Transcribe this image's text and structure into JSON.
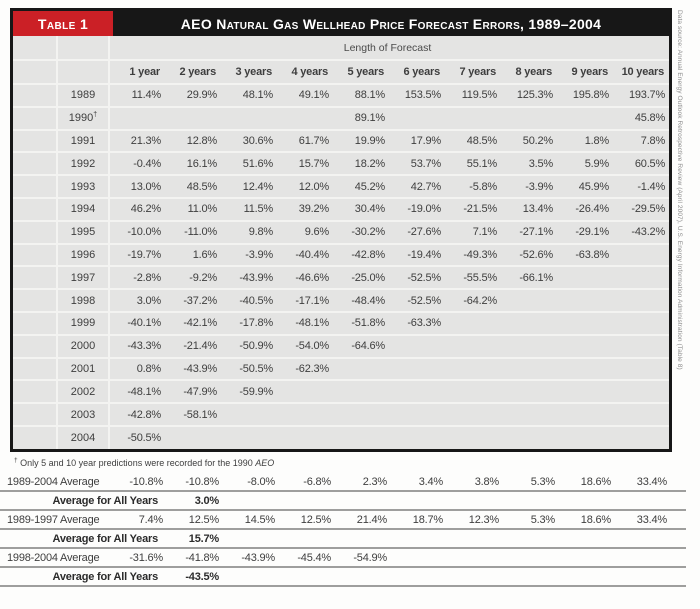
{
  "header": {
    "table_label": "Table 1",
    "title": "AEO Natural Gas Wellhead Price Forecast Errors, 1989–2004",
    "span_label": "Length of Forecast"
  },
  "source_note": "Data source: Annual Energy Outlook Retrospective Review (April 2007), U.S. Energy Information Administration (Table 8)",
  "footnote": {
    "marker": "†",
    "text": " Only 5 and 10 year predictions were recorded for the 1990 ",
    "italic": "AEO"
  },
  "colors": {
    "accent_red": "#cb2026",
    "bar_black": "#171717",
    "table_bg": "#e4e4e3",
    "grid_line": "#f3f3f1",
    "rule_gray": "#9e9e9d"
  },
  "chart_data": {
    "type": "table",
    "title": "AEO Natural Gas Wellhead Price Forecast Errors, 1989–2004",
    "column_group_label": "Length of Forecast",
    "columns": [
      "1 year",
      "2 years",
      "3 years",
      "4 years",
      "5 years",
      "6 years",
      "7 years",
      "8 years",
      "9 years",
      "10 years"
    ],
    "rows": [
      {
        "year": "1989",
        "note": "",
        "values": [
          "11.4%",
          "29.9%",
          "48.1%",
          "49.1%",
          "88.1%",
          "153.5%",
          "119.5%",
          "125.3%",
          "195.8%",
          "193.7%"
        ]
      },
      {
        "year": "1990",
        "note": "†",
        "values": [
          "",
          "",
          "",
          "",
          "89.1%",
          "",
          "",
          "",
          "",
          "45.8%"
        ]
      },
      {
        "year": "1991",
        "note": "",
        "values": [
          "21.3%",
          "12.8%",
          "30.6%",
          "61.7%",
          "19.9%",
          "17.9%",
          "48.5%",
          "50.2%",
          "1.8%",
          "7.8%"
        ]
      },
      {
        "year": "1992",
        "note": "",
        "values": [
          "-0.4%",
          "16.1%",
          "51.6%",
          "15.7%",
          "18.2%",
          "53.7%",
          "55.1%",
          "3.5%",
          "5.9%",
          "60.5%"
        ]
      },
      {
        "year": "1993",
        "note": "",
        "values": [
          "13.0%",
          "48.5%",
          "12.4%",
          "12.0%",
          "45.2%",
          "42.7%",
          "-5.8%",
          "-3.9%",
          "45.9%",
          "-1.4%"
        ]
      },
      {
        "year": "1994",
        "note": "",
        "values": [
          "46.2%",
          "11.0%",
          "11.5%",
          "39.2%",
          "30.4%",
          "-19.0%",
          "-21.5%",
          "13.4%",
          "-26.4%",
          "-29.5%"
        ]
      },
      {
        "year": "1995",
        "note": "",
        "values": [
          "-10.0%",
          "-11.0%",
          "9.8%",
          "9.6%",
          "-30.2%",
          "-27.6%",
          "7.1%",
          "-27.1%",
          "-29.1%",
          "-43.2%"
        ]
      },
      {
        "year": "1996",
        "note": "",
        "values": [
          "-19.7%",
          "1.6%",
          "-3.9%",
          "-40.4%",
          "-42.8%",
          "-19.4%",
          "-49.3%",
          "-52.6%",
          "-63.8%",
          ""
        ]
      },
      {
        "year": "1997",
        "note": "",
        "values": [
          "-2.8%",
          "-9.2%",
          "-43.9%",
          "-46.6%",
          "-25.0%",
          "-52.5%",
          "-55.5%",
          "-66.1%",
          "",
          ""
        ]
      },
      {
        "year": "1998",
        "note": "",
        "values": [
          "3.0%",
          "-37.2%",
          "-40.5%",
          "-17.1%",
          "-48.4%",
          "-52.5%",
          "-64.2%",
          "",
          "",
          ""
        ]
      },
      {
        "year": "1999",
        "note": "",
        "values": [
          "-40.1%",
          "-42.1%",
          "-17.8%",
          "-48.1%",
          "-51.8%",
          "-63.3%",
          "",
          "",
          "",
          ""
        ]
      },
      {
        "year": "2000",
        "note": "",
        "values": [
          "-43.3%",
          "-21.4%",
          "-50.9%",
          "-54.0%",
          "-64.6%",
          "",
          "",
          "",
          "",
          ""
        ]
      },
      {
        "year": "2001",
        "note": "",
        "values": [
          "0.8%",
          "-43.9%",
          "-50.5%",
          "-62.3%",
          "",
          "",
          "",
          "",
          "",
          ""
        ]
      },
      {
        "year": "2002",
        "note": "",
        "values": [
          "-48.1%",
          "-47.9%",
          "-59.9%",
          "",
          "",
          "",
          "",
          "",
          "",
          ""
        ]
      },
      {
        "year": "2003",
        "note": "",
        "values": [
          "-42.8%",
          "-58.1%",
          "",
          "",
          "",
          "",
          "",
          "",
          "",
          ""
        ]
      },
      {
        "year": "2004",
        "note": "",
        "values": [
          "-50.5%",
          "",
          "",
          "",
          "",
          "",
          "",
          "",
          "",
          ""
        ]
      }
    ],
    "averages": [
      {
        "label": "1989-2004 Average",
        "values": [
          "-10.8%",
          "-10.8%",
          "-8.0%",
          "-6.8%",
          "2.3%",
          "3.4%",
          "3.8%",
          "5.3%",
          "18.6%",
          "33.4%"
        ],
        "all_years_label": "Average for All Years",
        "all_years_value": "3.0%"
      },
      {
        "label": "1989-1997 Average",
        "values": [
          "7.4%",
          "12.5%",
          "14.5%",
          "12.5%",
          "21.4%",
          "18.7%",
          "12.3%",
          "5.3%",
          "18.6%",
          "33.4%"
        ],
        "all_years_label": "Average for All Years",
        "all_years_value": "15.7%"
      },
      {
        "label": "1998-2004 Average",
        "values": [
          "-31.6%",
          "-41.8%",
          "-43.9%",
          "-45.4%",
          "-54.9%",
          "",
          "",
          "",
          "",
          ""
        ],
        "all_years_label": "Average for All Years",
        "all_years_value": "-43.5%"
      }
    ]
  }
}
